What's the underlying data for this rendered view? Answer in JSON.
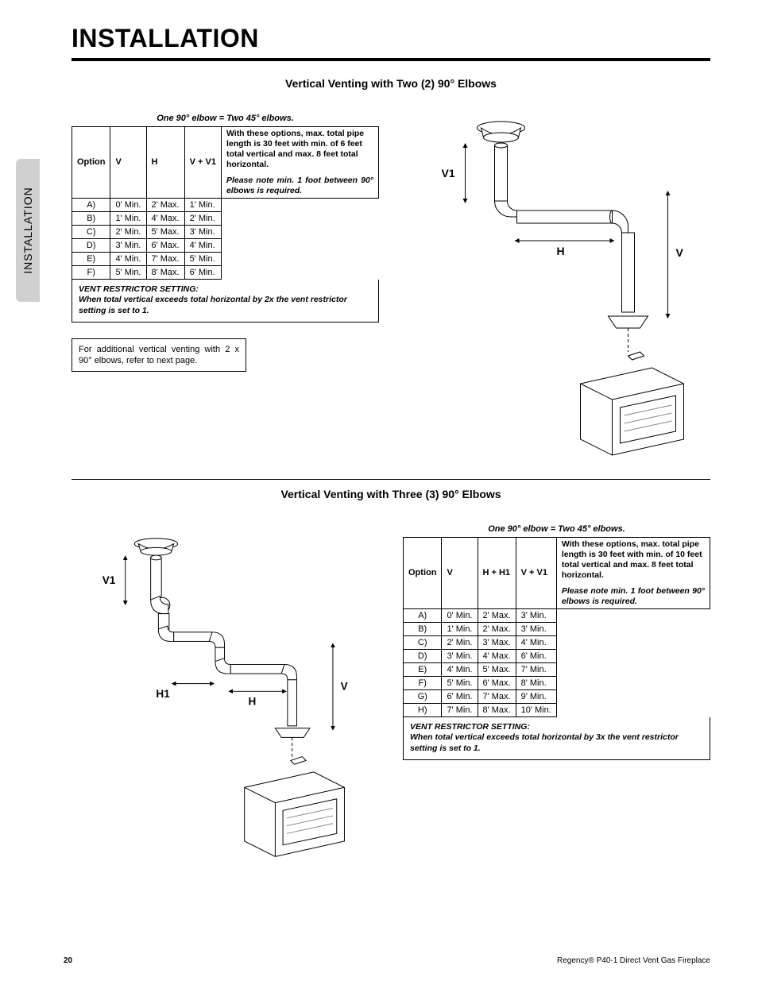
{
  "page_title": "INSTALLATION",
  "side_tab": "INSTALLATION",
  "section1": {
    "title": "Vertical Venting with Two (2) 90° Elbows",
    "caption": "One 90° elbow = Two 45° elbows.",
    "headers": [
      "Option",
      "V",
      "H",
      "V + V1"
    ],
    "rows": [
      [
        "A)",
        "0' Min.",
        "2' Max.",
        "1' Min."
      ],
      [
        "B)",
        "1' Min.",
        "4' Max.",
        "2' Min."
      ],
      [
        "C)",
        "2' Min.",
        "5' Max.",
        "3' Min."
      ],
      [
        "D)",
        "3' Min.",
        "6' Max.",
        "4' Min."
      ],
      [
        "E)",
        "4' Min.",
        "7' Max.",
        "5' Min."
      ],
      [
        "F)",
        "5' Min.",
        "8' Max.",
        "6' Min."
      ]
    ],
    "note_text": "With these options, max. total pipe length is 30 feet with min. of 6 feet total vertical and max. 8 feet total horizontal.",
    "note_bold": "Please note min. 1 foot between 90° elbows is required.",
    "restrictor_title": "VENT RESTRICTOR SETTING:",
    "restrictor_text": "When total vertical exceeds total horizontal by 2x the vent restrictor setting is set to 1.",
    "info_box": "For additional vertical venting with 2 x 90° elbows, refer to next page.",
    "labels": {
      "V1": "V1",
      "H": "H",
      "V": "V"
    }
  },
  "section2": {
    "title": "Vertical Venting with Three (3) 90° Elbows",
    "caption": "One 90° elbow = Two 45° elbows.",
    "headers": [
      "Option",
      "V",
      "H + H1",
      "V + V1"
    ],
    "rows": [
      [
        "A)",
        "0' Min.",
        "2' Max.",
        "3' Min."
      ],
      [
        "B)",
        "1' Min.",
        "2' Max.",
        "3' Min."
      ],
      [
        "C)",
        "2' Min.",
        "3' Max.",
        "4' Min."
      ],
      [
        "D)",
        "3' Min.",
        "4' Max.",
        "6' Min."
      ],
      [
        "E)",
        "4' Min.",
        "5' Max.",
        "7' Min."
      ],
      [
        "F)",
        "5' Min.",
        "6' Max.",
        "8' Min."
      ],
      [
        "G)",
        "6' Min.",
        "7' Max.",
        "9' Min."
      ],
      [
        "H)",
        "7' Min.",
        "8' Max.",
        "10' Min."
      ]
    ],
    "note_text": "With these options, max. total pipe length is 30 feet with min. of 10 feet total vertical and max. 8 feet total horizontal.",
    "note_bold": "Please note min. 1 foot between 90° elbows is required.",
    "restrictor_title": "VENT RESTRICTOR SETTING:",
    "restrictor_text": "When total vertical exceeds total horizontal by 3x the vent restrictor setting is set to 1.",
    "labels": {
      "V1": "V1",
      "H1": "H1",
      "H": "H",
      "V": "V"
    }
  },
  "footer": {
    "page": "20",
    "product": "Regency® P40-1 Direct Vent Gas Fireplace"
  },
  "colors": {
    "rule": "#000000",
    "tab_bg": "#d0d0d0"
  }
}
